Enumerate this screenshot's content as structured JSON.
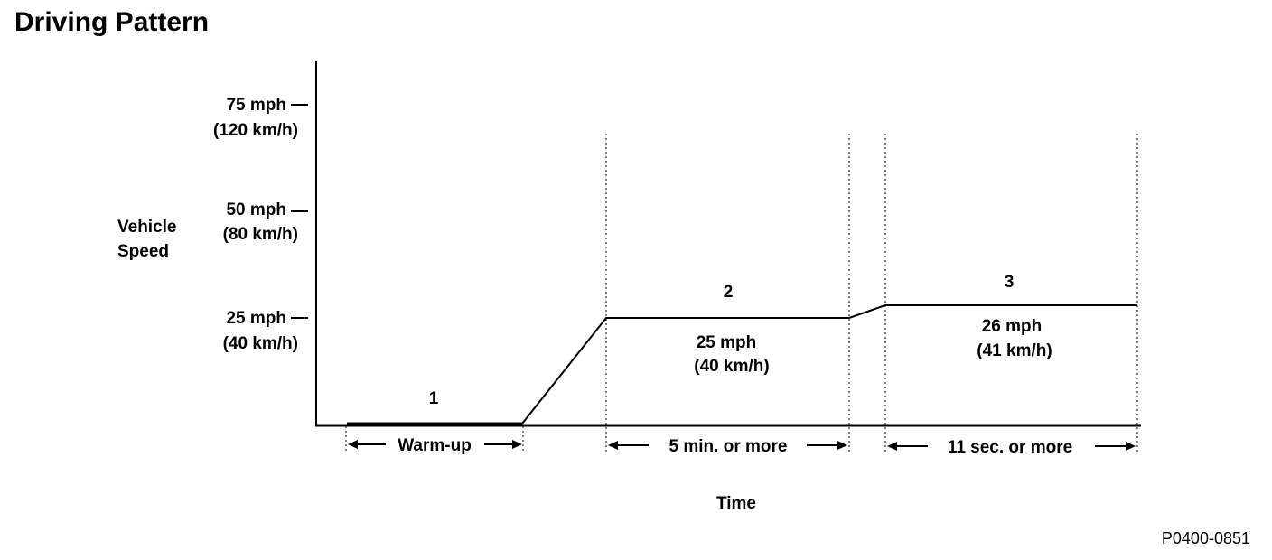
{
  "title": "Driving Pattern",
  "figure_code": "P0400-0851",
  "y_axis": {
    "label_line1": "Vehicle",
    "label_line2": "Speed",
    "ticks": [
      {
        "mph": 75,
        "line1": "75 mph",
        "line2": "(120 km/h)"
      },
      {
        "mph": 50,
        "line1": "50 mph",
        "line2": "(80 km/h)"
      },
      {
        "mph": 25,
        "line1": "25 mph",
        "line2": "(40 km/h)"
      }
    ]
  },
  "x_axis": {
    "label": "Time"
  },
  "phases": [
    {
      "number": "1",
      "duration": "Warm-up",
      "speed_mph": 0
    },
    {
      "number": "2",
      "duration": "5 min. or more",
      "speed_line1": "25 mph",
      "speed_line2": "(40 km/h)",
      "speed_mph": 25
    },
    {
      "number": "3",
      "duration": "11 sec. or more",
      "speed_line1": "26 mph",
      "speed_line2": "(41 km/h)",
      "speed_mph": 26
    }
  ],
  "colors": {
    "line": "#000000",
    "background": "#ffffff"
  }
}
